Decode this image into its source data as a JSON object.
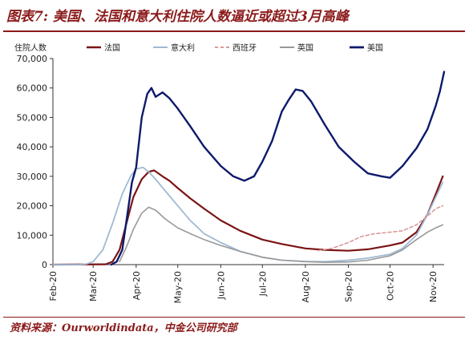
{
  "header": {
    "title": "图表7: 美国、法国和意大利住院人数逼近或超过3月高峰"
  },
  "footer": {
    "source": "资料来源：Ourworldindata，中金公司研究部"
  },
  "chart_data": {
    "type": "line",
    "title": "图表7: 美国、法国和意大利住院人数逼近或超过3月高峰",
    "ylabel": "住院人数",
    "xlabel": "",
    "ylim": [
      0,
      70000
    ],
    "yticks": [
      0,
      10000,
      20000,
      30000,
      40000,
      50000,
      60000,
      70000
    ],
    "ytick_labels": [
      "0",
      "10,000",
      "20,000",
      "30,000",
      "40,000",
      "50,000",
      "60,000",
      "70,000"
    ],
    "xticks": [
      {
        "label": "Feb-20",
        "date": "2020-02-01"
      },
      {
        "label": "Mar-20",
        "date": "2020-03-01"
      },
      {
        "label": "Apr-20",
        "date": "2020-04-01"
      },
      {
        "label": "May-20",
        "date": "2020-05-01"
      },
      {
        "label": "Jun-20",
        "date": "2020-06-01"
      },
      {
        "label": "Jul-20",
        "date": "2020-07-01"
      },
      {
        "label": "Aug-20",
        "date": "2020-08-01"
      },
      {
        "label": "Sep-20",
        "date": "2020-09-01"
      },
      {
        "label": "Oct-20",
        "date": "2020-10-01"
      },
      {
        "label": "Nov-20",
        "date": "2020-11-01"
      }
    ],
    "xrange": [
      "2020-02-01",
      "2020-11-09"
    ],
    "grid": false,
    "legend_position": "top",
    "series": [
      {
        "name": "法国",
        "color": "#7b1414",
        "dash": "",
        "width": 2.2,
        "points": [
          [
            "2020-02-01",
            0
          ],
          [
            "2020-03-10",
            100
          ],
          [
            "2020-03-15",
            1000
          ],
          [
            "2020-03-20",
            5000
          ],
          [
            "2020-03-25",
            14000
          ],
          [
            "2020-03-30",
            23000
          ],
          [
            "2020-04-05",
            29000
          ],
          [
            "2020-04-10",
            31500
          ],
          [
            "2020-04-14",
            32000
          ],
          [
            "2020-04-20",
            30000
          ],
          [
            "2020-04-25",
            28500
          ],
          [
            "2020-05-01",
            26000
          ],
          [
            "2020-05-10",
            22500
          ],
          [
            "2020-05-20",
            19000
          ],
          [
            "2020-06-01",
            15000
          ],
          [
            "2020-06-15",
            11500
          ],
          [
            "2020-07-01",
            8500
          ],
          [
            "2020-07-15",
            7000
          ],
          [
            "2020-08-01",
            5500
          ],
          [
            "2020-08-15",
            5000
          ],
          [
            "2020-09-01",
            4700
          ],
          [
            "2020-09-15",
            5200
          ],
          [
            "2020-10-01",
            6500
          ],
          [
            "2020-10-10",
            7500
          ],
          [
            "2020-10-20",
            11000
          ],
          [
            "2020-10-28",
            17000
          ],
          [
            "2020-11-03",
            24000
          ],
          [
            "2020-11-08",
            30000
          ]
        ]
      },
      {
        "name": "意大利",
        "color": "#9fbad3",
        "dash": "",
        "width": 1.8,
        "points": [
          [
            "2020-02-01",
            0
          ],
          [
            "2020-02-20",
            0
          ],
          [
            "2020-02-25",
            200
          ],
          [
            "2020-03-01",
            1000
          ],
          [
            "2020-03-08",
            5000
          ],
          [
            "2020-03-15",
            14000
          ],
          [
            "2020-03-22",
            24000
          ],
          [
            "2020-03-28",
            30000
          ],
          [
            "2020-04-01",
            32500
          ],
          [
            "2020-04-06",
            33000
          ],
          [
            "2020-04-10",
            31500
          ],
          [
            "2020-04-15",
            29000
          ],
          [
            "2020-04-22",
            25000
          ],
          [
            "2020-05-01",
            20000
          ],
          [
            "2020-05-10",
            15000
          ],
          [
            "2020-05-20",
            10500
          ],
          [
            "2020-06-01",
            7500
          ],
          [
            "2020-06-15",
            4500
          ],
          [
            "2020-07-01",
            2500
          ],
          [
            "2020-07-15",
            1500
          ],
          [
            "2020-08-01",
            1100
          ],
          [
            "2020-08-15",
            1000
          ],
          [
            "2020-09-01",
            1500
          ],
          [
            "2020-09-15",
            2200
          ],
          [
            "2020-10-01",
            3500
          ],
          [
            "2020-10-10",
            5500
          ],
          [
            "2020-10-20",
            10000
          ],
          [
            "2020-10-28",
            17000
          ],
          [
            "2020-11-03",
            23000
          ],
          [
            "2020-11-08",
            28000
          ]
        ]
      },
      {
        "name": "西班牙",
        "color": "#d99a9a",
        "dash": "4,3",
        "width": 1.6,
        "points": [
          [
            "2020-08-10",
            4800
          ],
          [
            "2020-08-20",
            5500
          ],
          [
            "2020-09-01",
            7500
          ],
          [
            "2020-09-10",
            9500
          ],
          [
            "2020-09-20",
            10500
          ],
          [
            "2020-10-01",
            11000
          ],
          [
            "2020-10-10",
            11500
          ],
          [
            "2020-10-20",
            13500
          ],
          [
            "2020-10-28",
            16500
          ],
          [
            "2020-11-03",
            19000
          ],
          [
            "2020-11-08",
            20000
          ]
        ]
      },
      {
        "name": "英国",
        "color": "#999999",
        "dash": "",
        "width": 1.6,
        "points": [
          [
            "2020-03-20",
            1000
          ],
          [
            "2020-03-25",
            6000
          ],
          [
            "2020-03-30",
            12000
          ],
          [
            "2020-04-05",
            17500
          ],
          [
            "2020-04-10",
            19500
          ],
          [
            "2020-04-15",
            18500
          ],
          [
            "2020-04-22",
            15500
          ],
          [
            "2020-05-01",
            12500
          ],
          [
            "2020-05-10",
            10500
          ],
          [
            "2020-05-20",
            8500
          ],
          [
            "2020-06-01",
            6500
          ],
          [
            "2020-06-15",
            4500
          ],
          [
            "2020-07-01",
            2500
          ],
          [
            "2020-07-15",
            1500
          ],
          [
            "2020-08-01",
            1000
          ],
          [
            "2020-08-15",
            800
          ],
          [
            "2020-09-01",
            900
          ],
          [
            "2020-09-15",
            1500
          ],
          [
            "2020-10-01",
            3000
          ],
          [
            "2020-10-10",
            5000
          ],
          [
            "2020-10-20",
            8500
          ],
          [
            "2020-10-28",
            11000
          ],
          [
            "2020-11-03",
            12500
          ],
          [
            "2020-11-08",
            13500
          ]
        ]
      },
      {
        "name": "美国",
        "color": "#0e1a6b",
        "dash": "",
        "width": 2.4,
        "points": [
          [
            "2020-03-14",
            0
          ],
          [
            "2020-03-18",
            1000
          ],
          [
            "2020-03-22",
            5000
          ],
          [
            "2020-03-26",
            18000
          ],
          [
            "2020-03-29",
            28000
          ],
          [
            "2020-04-01",
            33000
          ],
          [
            "2020-04-05",
            50000
          ],
          [
            "2020-04-09",
            58000
          ],
          [
            "2020-04-12",
            60000
          ],
          [
            "2020-04-15",
            57000
          ],
          [
            "2020-04-20",
            58500
          ],
          [
            "2020-04-25",
            56500
          ],
          [
            "2020-05-01",
            53000
          ],
          [
            "2020-05-10",
            47000
          ],
          [
            "2020-05-20",
            40000
          ],
          [
            "2020-06-01",
            33500
          ],
          [
            "2020-06-10",
            30000
          ],
          [
            "2020-06-18",
            28500
          ],
          [
            "2020-06-25",
            30000
          ],
          [
            "2020-07-01",
            35000
          ],
          [
            "2020-07-08",
            42000
          ],
          [
            "2020-07-15",
            52000
          ],
          [
            "2020-07-20",
            56000
          ],
          [
            "2020-07-25",
            59500
          ],
          [
            "2020-07-30",
            59000
          ],
          [
            "2020-08-05",
            55500
          ],
          [
            "2020-08-15",
            47500
          ],
          [
            "2020-08-25",
            40000
          ],
          [
            "2020-09-05",
            35000
          ],
          [
            "2020-09-15",
            31000
          ],
          [
            "2020-09-25",
            30000
          ],
          [
            "2020-10-01",
            29500
          ],
          [
            "2020-10-10",
            33500
          ],
          [
            "2020-10-20",
            39500
          ],
          [
            "2020-10-28",
            46000
          ],
          [
            "2020-11-03",
            54000
          ],
          [
            "2020-11-06",
            59000
          ],
          [
            "2020-11-09",
            65500
          ]
        ]
      }
    ]
  }
}
